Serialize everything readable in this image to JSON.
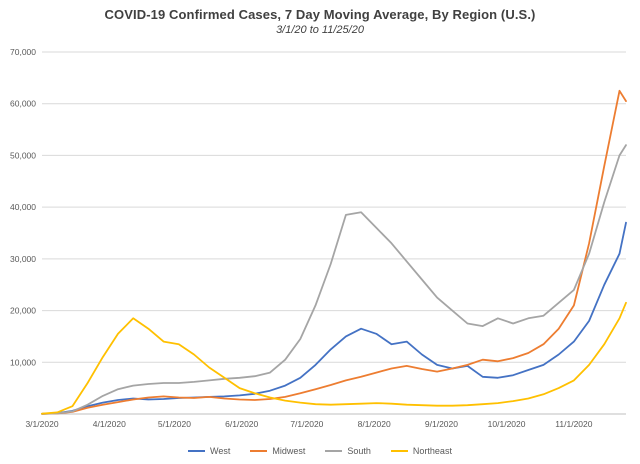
{
  "chart_data": {
    "type": "line",
    "title": "COVID-19 Confirmed Cases, 7 Day Moving Average, By Region (U.S.)",
    "subtitle": "3/1/20 to 11/25/20",
    "xlabel": "",
    "ylabel": "",
    "ylim": [
      0,
      70000
    ],
    "y_tick_step": 10000,
    "y_tick_labels": [
      "10,000",
      "20,000",
      "30,000",
      "40,000",
      "50,000",
      "60,000",
      "70,000"
    ],
    "grid": "horizontal",
    "legend_position": "bottom",
    "total_days": 269,
    "x_ticks": [
      {
        "label": "3/1/2020",
        "day": 0
      },
      {
        "label": "4/1/2020",
        "day": 31
      },
      {
        "label": "5/1/2020",
        "day": 61
      },
      {
        "label": "6/1/2020",
        "day": 92
      },
      {
        "label": "7/1/2020",
        "day": 122
      },
      {
        "label": "8/1/2020",
        "day": 153
      },
      {
        "label": "9/1/2020",
        "day": 184
      },
      {
        "label": "10/1/2020",
        "day": 214
      },
      {
        "label": "11/1/2020",
        "day": 245
      }
    ],
    "x_days": [
      0,
      7,
      14,
      21,
      28,
      35,
      42,
      49,
      56,
      63,
      70,
      77,
      84,
      91,
      98,
      105,
      112,
      119,
      126,
      133,
      140,
      147,
      154,
      161,
      168,
      175,
      182,
      189,
      196,
      203,
      210,
      217,
      224,
      231,
      238,
      245,
      252,
      259,
      266,
      269
    ],
    "series": [
      {
        "name": "West",
        "color": "#4472C4",
        "values": [
          30,
          150,
          600,
          1500,
          2200,
          2700,
          3000,
          2800,
          2900,
          3100,
          3200,
          3300,
          3400,
          3600,
          3900,
          4500,
          5500,
          7000,
          9500,
          12500,
          15000,
          16500,
          15500,
          13500,
          14000,
          11500,
          9500,
          8800,
          9300,
          7200,
          7000,
          7500,
          8500,
          9500,
          11500,
          14000,
          18000,
          25000,
          31000,
          37000
        ]
      },
      {
        "name": "Midwest",
        "color": "#ED7D31",
        "values": [
          20,
          100,
          400,
          1200,
          1800,
          2300,
          2800,
          3200,
          3400,
          3200,
          3100,
          3300,
          3000,
          2800,
          2700,
          2900,
          3300,
          4000,
          4800,
          5600,
          6500,
          7200,
          8000,
          8800,
          9300,
          8700,
          8200,
          8800,
          9500,
          10500,
          10200,
          10800,
          11800,
          13500,
          16500,
          21000,
          33000,
          48000,
          62500,
          60500
        ]
      },
      {
        "name": "South",
        "color": "#A5A5A5",
        "values": [
          20,
          120,
          500,
          1800,
          3500,
          4800,
          5500,
          5800,
          6000,
          6000,
          6200,
          6500,
          6800,
          7000,
          7300,
          8000,
          10500,
          14500,
          21000,
          29000,
          38500,
          39000,
          36000,
          33000,
          29500,
          26000,
          22500,
          20000,
          17500,
          17000,
          18500,
          17500,
          18500,
          19000,
          21500,
          24000,
          31000,
          41000,
          50000,
          52000
        ]
      },
      {
        "name": "Northeast",
        "color": "#FFC000",
        "values": [
          50,
          300,
          1500,
          6000,
          11000,
          15500,
          18500,
          16500,
          14000,
          13500,
          11500,
          9000,
          7000,
          5000,
          4000,
          3200,
          2600,
          2200,
          1900,
          1800,
          1900,
          2000,
          2100,
          2000,
          1800,
          1700,
          1600,
          1600,
          1700,
          1900,
          2100,
          2500,
          3000,
          3800,
          5000,
          6500,
          9500,
          13500,
          18500,
          21500
        ]
      }
    ],
    "colors": {
      "grid": "#D9D9D9",
      "axis": "#BFBFBF",
      "tick_text": "#595959",
      "title_text": "#404040"
    }
  }
}
